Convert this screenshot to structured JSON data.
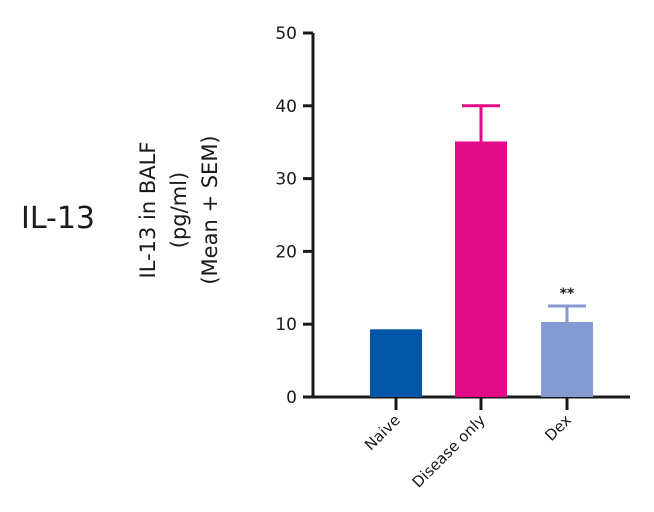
{
  "panel_label": "IL-13",
  "chart_data": {
    "type": "bar",
    "ylabel_lines": [
      "IL-13 in BALF",
      "(pg/ml)",
      "(Mean + SEM)"
    ],
    "xlabel": "",
    "categories": [
      "Naive",
      "Disease only",
      "Dex"
    ],
    "values": [
      9.3,
      35.1,
      10.3
    ],
    "errors": [
      0,
      4.9,
      2.2
    ],
    "annotations": [
      "",
      "",
      "**"
    ],
    "colors": [
      "#0257a6",
      "#e20a87",
      "#8599d3"
    ],
    "ylim": [
      0,
      50
    ],
    "yticks": [
      0,
      10,
      20,
      30,
      40,
      50
    ],
    "grid": false
  }
}
